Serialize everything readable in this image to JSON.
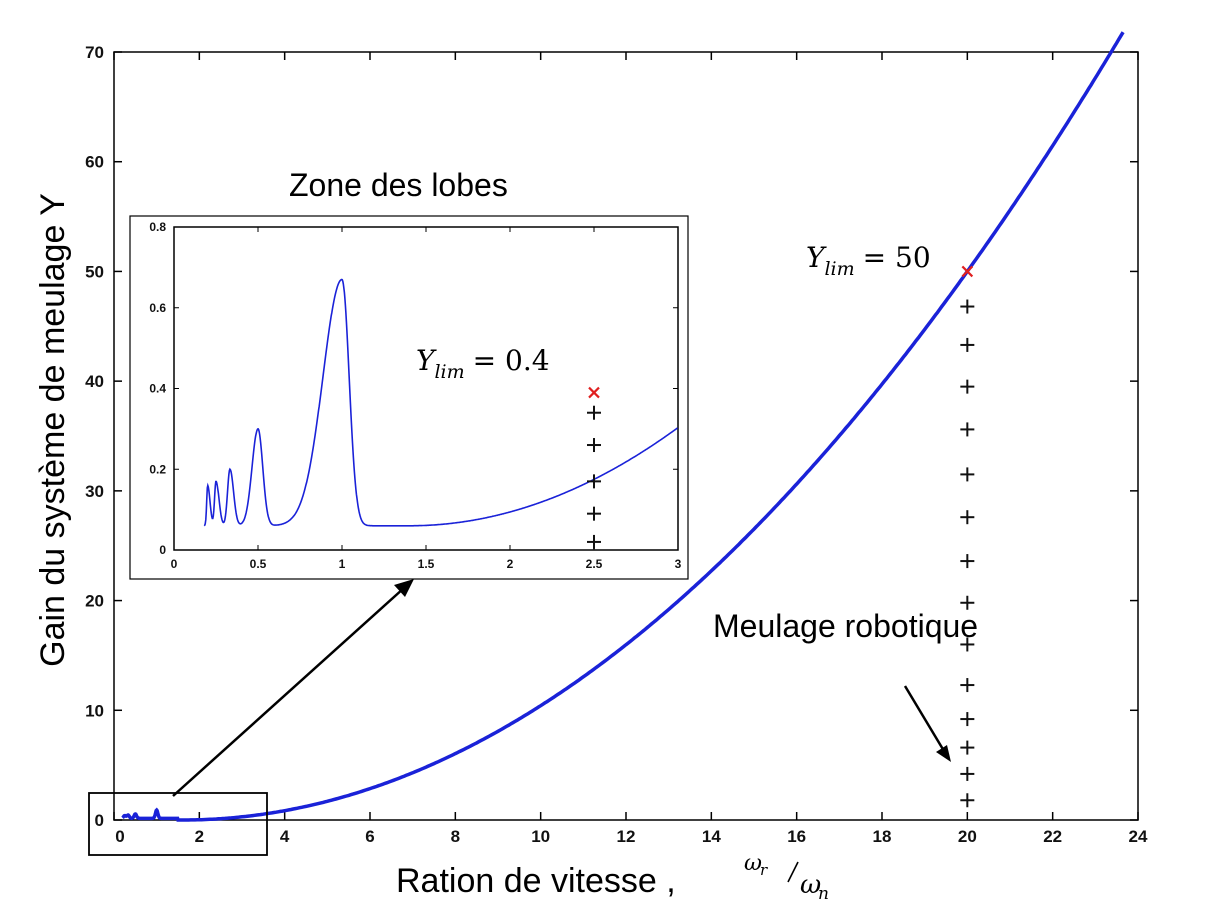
{
  "chart_data": [
    {
      "type": "line",
      "xlabel": "Ration de vitesse ,",
      "xlabel_math": {
        "num": "ω",
        "num_sub": "r",
        "den": "ω",
        "den_sub": "n"
      },
      "ylabel": "Gain du système de meulage Y",
      "xlim": [
        0,
        24
      ],
      "ylim": [
        0,
        70
      ],
      "xticks": [
        "0",
        "2",
        "4",
        "6",
        "8",
        "10",
        "12",
        "14",
        "16",
        "18",
        "20",
        "22",
        "24"
      ],
      "yticks": [
        "0",
        "10",
        "20",
        "30",
        "40",
        "50",
        "60",
        "70"
      ],
      "series": [
        {
          "x": [
            0.2,
            0.5,
            1.0,
            1.5,
            2,
            3,
            4,
            5,
            6,
            8,
            10,
            12,
            14,
            16,
            18,
            20,
            22,
            23.7
          ],
          "y": [
            0.2,
            0.35,
            0.7,
            0.1,
            0.0,
            0.6,
            1.4,
            2.6,
            4.0,
            7.6,
            12.3,
            17.9,
            24.5,
            32.0,
            40.5,
            50.0,
            60.5,
            70.0
          ]
        }
      ],
      "marker": {
        "x": 20,
        "y": 50,
        "label_sym": "Y",
        "label_sub": "lim",
        "label_val": "= 50"
      },
      "plus_markers": {
        "x": 20,
        "y": [
          46.8,
          43.3,
          39.5,
          35.6,
          31.5,
          27.6,
          23.6,
          19.8,
          16.0,
          12.3,
          9.2,
          6.6,
          4.2,
          1.8
        ]
      },
      "annotations": [
        "Meulage robotique"
      ]
    },
    {
      "type": "line",
      "title": "Zone des lobes",
      "xlim": [
        0,
        3
      ],
      "ylim": [
        0,
        0.8
      ],
      "xticks": [
        "0",
        "0.5",
        "1",
        "1.5",
        "2",
        "2.5",
        "3"
      ],
      "yticks": [
        "0",
        "0.2",
        "0.4",
        "0.6",
        "0.8"
      ],
      "marker": {
        "x": 2.5,
        "y": 0.39,
        "label_sym": "Y",
        "label_sub": "lim",
        "label_val": "= 0.4"
      },
      "plus_markers": {
        "x": 2.5,
        "y": [
          0.34,
          0.26,
          0.17,
          0.09,
          0.02
        ]
      }
    }
  ]
}
